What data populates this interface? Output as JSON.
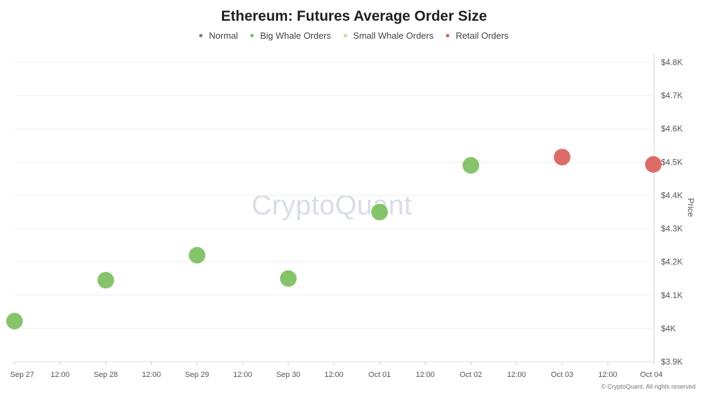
{
  "chart_data": {
    "type": "scatter",
    "title": "Ethereum: Futures Average Order Size",
    "ylabel": "Price",
    "xlabel": "",
    "ylim": [
      3900,
      4800
    ],
    "yticks": [
      {
        "value": 4800,
        "label": "$4.8K"
      },
      {
        "value": 4700,
        "label": "$4.7K"
      },
      {
        "value": 4600,
        "label": "$4.6K"
      },
      {
        "value": 4500,
        "label": "$4.5K"
      },
      {
        "value": 4400,
        "label": "$4.4K"
      },
      {
        "value": 4300,
        "label": "$4.3K"
      },
      {
        "value": 4200,
        "label": "$4.2K"
      },
      {
        "value": 4100,
        "label": "$4.1K"
      },
      {
        "value": 4000,
        "label": "$4K"
      },
      {
        "value": 3900,
        "label": "$3.9K"
      }
    ],
    "xticks": [
      "Sep 27",
      "12:00",
      "Sep 28",
      "12:00",
      "Sep 29",
      "12:00",
      "Sep 30",
      "12:00",
      "Oct 01",
      "12:00",
      "Oct 02",
      "12:00",
      "Oct 03",
      "12:00",
      "Oct 04"
    ],
    "legend": [
      {
        "name": "Normal",
        "color": "#7f7f7f"
      },
      {
        "name": "Big Whale Orders",
        "color": "#7cbf5e"
      },
      {
        "name": "Small Whale Orders",
        "color": "#c9dca0"
      },
      {
        "name": "Retail Orders",
        "color": "#d9605c"
      }
    ],
    "legend_position": "top",
    "grid": true,
    "points": [
      {
        "x": "Sep 27",
        "y": 4022,
        "category": "Big Whale Orders"
      },
      {
        "x": "Sep 28",
        "y": 4145,
        "category": "Big Whale Orders"
      },
      {
        "x": "Sep 29",
        "y": 4220,
        "category": "Big Whale Orders"
      },
      {
        "x": "Sep 30",
        "y": 4150,
        "category": "Big Whale Orders"
      },
      {
        "x": "Oct 01",
        "y": 4350,
        "category": "Big Whale Orders"
      },
      {
        "x": "Oct 02",
        "y": 4490,
        "category": "Big Whale Orders"
      },
      {
        "x": "Oct 03",
        "y": 4515,
        "category": "Retail Orders"
      },
      {
        "x": "Oct 04",
        "y": 4493,
        "category": "Retail Orders"
      }
    ]
  },
  "watermark": "CryptoQuant",
  "copyright": "© CryptoQuant. All rights reserved"
}
